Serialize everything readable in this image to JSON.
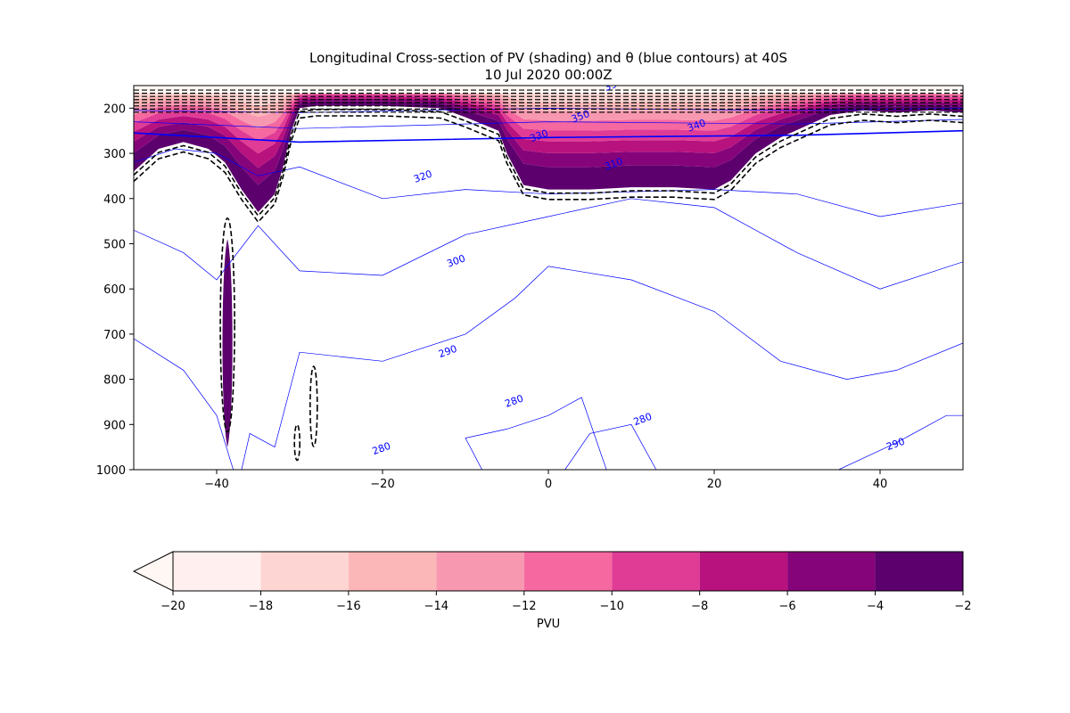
{
  "chart_data": {
    "type": "contour",
    "title": "Longitudinal Cross-section of PV (shading) and θ (blue contours) at 40S",
    "subtitle": "10 Jul 2020 00:00Z",
    "x_ticks": [
      -40,
      -20,
      0,
      20,
      40
    ],
    "xlim": [
      -50,
      50
    ],
    "y_ticks": [
      200,
      300,
      400,
      500,
      600,
      700,
      800,
      900,
      1000
    ],
    "ylim": [
      1000,
      150
    ],
    "yscale": "linear",
    "grid": false,
    "pv_shading": {
      "levels": [
        -20,
        -18,
        -16,
        -14,
        -12,
        -10,
        -8,
        -6,
        -4,
        -2
      ],
      "colors": [
        "#fff0ef",
        "#fdd6d3",
        "#fbb7b7",
        "#f898b0",
        "#f668a0",
        "#e03c96",
        "#b8127e",
        "#86047a",
        "#5c006e"
      ],
      "under_color": "#fff7f3",
      "lower_boundary_hpa": [
        {
          "lon": -50,
          "p": 340
        },
        {
          "lon": -47,
          "p": 290
        },
        {
          "lon": -44,
          "p": 275
        },
        {
          "lon": -41,
          "p": 290
        },
        {
          "lon": -39,
          "p": 320
        },
        {
          "lon": -37,
          "p": 380
        },
        {
          "lon": -35,
          "p": 430
        },
        {
          "lon": -33,
          "p": 390
        },
        {
          "lon": -32,
          "p": 330
        },
        {
          "lon": -31,
          "p": 250
        },
        {
          "lon": -30,
          "p": 200
        },
        {
          "lon": -28,
          "p": 195
        },
        {
          "lon": -20,
          "p": 195
        },
        {
          "lon": -13,
          "p": 200
        },
        {
          "lon": -10,
          "p": 220
        },
        {
          "lon": -6,
          "p": 250
        },
        {
          "lon": -5,
          "p": 300
        },
        {
          "lon": -3,
          "p": 370
        },
        {
          "lon": 0,
          "p": 380
        },
        {
          "lon": 5,
          "p": 380
        },
        {
          "lon": 10,
          "p": 375
        },
        {
          "lon": 15,
          "p": 375
        },
        {
          "lon": 20,
          "p": 380
        },
        {
          "lon": 22,
          "p": 360
        },
        {
          "lon": 25,
          "p": 300
        },
        {
          "lon": 28,
          "p": 265
        },
        {
          "lon": 31,
          "p": 240
        },
        {
          "lon": 34,
          "p": 215
        },
        {
          "lon": 38,
          "p": 205
        },
        {
          "lon": 42,
          "p": 210
        },
        {
          "lon": 46,
          "p": 205
        },
        {
          "lon": 50,
          "p": 210
        }
      ],
      "isolated_anomaly": {
        "lon": -38.7,
        "p_top": 490,
        "p_bottom": 950,
        "half_width_deg": 0.8
      }
    },
    "dashed_contour_label": "",
    "contour_labels": [
      {
        "text": "390",
        "lon": 8,
        "p": 155
      },
      {
        "text": "350",
        "lon": 4,
        "p": 225
      },
      {
        "text": "340",
        "lon": 18,
        "p": 245
      },
      {
        "text": "330",
        "lon": -1,
        "p": 268
      },
      {
        "text": "320",
        "lon": -15,
        "p": 358
      },
      {
        "text": "310",
        "lon": 8,
        "p": 330
      },
      {
        "text": "300",
        "lon": -11,
        "p": 545
      },
      {
        "text": "290",
        "lon": -12,
        "p": 745
      },
      {
        "text": "280",
        "lon": -4,
        "p": 855
      },
      {
        "text": "280",
        "lon": 11.5,
        "p": 895
      },
      {
        "text": "280",
        "lon": -20,
        "p": 960
      },
      {
        "text": "290",
        "lon": 42,
        "p": 950
      }
    ],
    "colorbar": {
      "label": "PVU",
      "ticks": [
        -20,
        -18,
        -16,
        -14,
        -12,
        -10,
        -8,
        -6,
        -4,
        -2
      ],
      "extend": "min"
    }
  }
}
